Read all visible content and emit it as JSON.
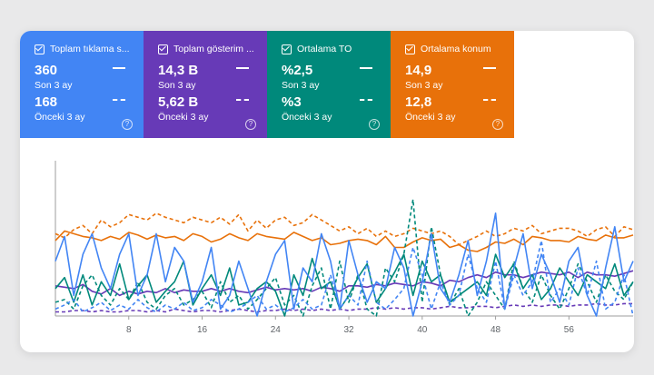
{
  "metrics": [
    {
      "label": "Toplam tıklama s...",
      "current_value": "360",
      "current_period": "Son 3 ay",
      "previous_value": "168",
      "previous_period": "Önceki 3 ay",
      "color": "#4285f4"
    },
    {
      "label": "Toplam gösterim ...",
      "current_value": "14,3 B",
      "current_period": "Son 3 ay",
      "previous_value": "5,62 B",
      "previous_period": "Önceki 3 ay",
      "color": "#673ab7"
    },
    {
      "label": "Ortalama TO",
      "current_value": "%2,5",
      "current_period": "Son 3 ay",
      "previous_value": "%3",
      "previous_period": "Önceki 3 ay",
      "color": "#00897b"
    },
    {
      "label": "Ortalama konum",
      "current_value": "14,9",
      "current_period": "Son 3 ay",
      "previous_value": "12,8",
      "previous_period": "Önceki 3 ay",
      "color": "#e8710a"
    }
  ],
  "chart_data": {
    "type": "line",
    "x_ticks": [
      8,
      16,
      24,
      32,
      40,
      48,
      56
    ],
    "xlim": [
      0,
      63
    ],
    "ylim": [
      0,
      100
    ],
    "grid": false,
    "series": [
      {
        "metric": "Ortalama konum",
        "period": "current",
        "style": "solid",
        "color": "#e8710a",
        "values": [
          55,
          62,
          60,
          58,
          57,
          55,
          58,
          56,
          61,
          59,
          56,
          59,
          57,
          58,
          55,
          60,
          58,
          54,
          56,
          60,
          57,
          55,
          60,
          58,
          57,
          56,
          61,
          58,
          55,
          57,
          52,
          53,
          55,
          56,
          55,
          52,
          58,
          50,
          50,
          54,
          57,
          55,
          56,
          50,
          52,
          48,
          47,
          50,
          54,
          53,
          56,
          52,
          58,
          57,
          55,
          55,
          54,
          58,
          56,
          55,
          59,
          57,
          57,
          59
        ]
      },
      {
        "metric": "Ortalama konum",
        "period": "previous",
        "style": "dashed",
        "color": "#e8710a",
        "values": [
          60,
          57,
          63,
          66,
          60,
          70,
          65,
          68,
          74,
          72,
          70,
          75,
          72,
          70,
          68,
          72,
          70,
          68,
          72,
          67,
          74,
          62,
          70,
          64,
          70,
          72,
          66,
          68,
          74,
          70,
          66,
          62,
          65,
          60,
          64,
          58,
          62,
          58,
          60,
          64,
          62,
          60,
          62,
          58,
          52,
          55,
          58,
          62,
          58,
          60,
          64,
          62,
          66,
          60,
          62,
          64,
          64,
          62,
          58,
          63,
          65,
          58,
          65,
          63
        ]
      },
      {
        "metric": "Toplam gösterim",
        "period": "current",
        "style": "solid",
        "color": "#673ab7",
        "values": [
          22,
          21,
          20,
          23,
          18,
          16,
          20,
          15,
          18,
          16,
          18,
          17,
          20,
          17,
          19,
          18,
          18,
          20,
          18,
          20,
          18,
          17,
          19,
          21,
          19,
          20,
          19,
          20,
          18,
          21,
          20,
          18,
          22,
          22,
          21,
          23,
          22,
          24,
          23,
          22,
          25,
          24,
          22,
          26,
          25,
          28,
          30,
          28,
          32,
          30,
          30,
          28,
          30,
          32,
          31,
          30,
          32,
          28,
          32,
          30,
          30,
          29,
          31,
          33
        ]
      },
      {
        "metric": "Toplam gösterim",
        "period": "previous",
        "style": "dashed",
        "color": "#673ab7",
        "values": [
          3,
          3,
          4,
          4,
          3,
          4,
          3,
          3,
          4,
          4,
          3,
          4,
          3,
          5,
          4,
          3,
          4,
          4,
          3,
          4,
          5,
          4,
          3,
          4,
          4,
          5,
          4,
          5,
          4,
          5,
          4,
          5,
          4,
          5,
          5,
          6,
          5,
          6,
          5,
          6,
          6,
          5,
          6,
          7,
          6,
          6,
          7,
          7,
          6,
          7,
          8,
          7,
          8,
          7,
          8,
          8,
          7,
          8,
          8,
          9,
          8,
          8,
          9,
          9
        ]
      },
      {
        "metric": "Ortalama TO",
        "period": "current",
        "style": "solid",
        "color": "#00897b",
        "values": [
          20,
          28,
          10,
          30,
          8,
          25,
          15,
          38,
          12,
          22,
          30,
          10,
          18,
          25,
          40,
          8,
          20,
          30,
          15,
          35,
          8,
          10,
          20,
          25,
          18,
          0,
          30,
          15,
          42,
          20,
          25,
          5,
          15,
          28,
          38,
          10,
          20,
          32,
          45,
          15,
          40,
          25,
          30,
          10,
          15,
          20,
          25,
          15,
          45,
          28,
          38,
          20,
          30,
          12,
          20,
          35,
          25,
          15,
          30,
          25,
          20,
          38,
          15,
          25
        ]
      },
      {
        "metric": "Ortalama TO",
        "period": "previous",
        "style": "dashed",
        "color": "#00897b",
        "values": [
          10,
          12,
          5,
          22,
          30,
          15,
          8,
          20,
          12,
          25,
          10,
          5,
          15,
          20,
          8,
          12,
          18,
          6,
          25,
          10,
          15,
          5,
          12,
          20,
          28,
          8,
          15,
          0,
          22,
          35,
          5,
          40,
          10,
          30,
          5,
          0,
          35,
          25,
          45,
          85,
          10,
          65,
          30,
          8,
          20,
          0,
          10,
          25,
          15,
          5,
          40,
          20,
          10,
          30,
          15,
          5,
          20,
          38,
          25,
          10,
          30,
          18,
          12,
          25
        ]
      },
      {
        "metric": "Toplam tıklama",
        "period": "current",
        "style": "solid",
        "color": "#4285f4",
        "values": [
          40,
          58,
          15,
          45,
          60,
          35,
          20,
          45,
          60,
          15,
          30,
          60,
          25,
          50,
          40,
          10,
          25,
          50,
          5,
          15,
          40,
          20,
          0,
          25,
          45,
          55,
          5,
          35,
          25,
          60,
          40,
          5,
          55,
          30,
          10,
          25,
          20,
          50,
          35,
          0,
          25,
          60,
          20,
          10,
          30,
          55,
          15,
          40,
          75,
          5,
          35,
          60,
          20,
          45,
          30,
          10,
          40,
          50,
          15,
          0,
          35,
          65,
          25,
          40
        ]
      },
      {
        "metric": "Toplam tıklama",
        "period": "previous",
        "style": "dashed",
        "color": "#4285f4",
        "values": [
          5,
          8,
          12,
          3,
          6,
          10,
          4,
          8,
          5,
          12,
          6,
          3,
          8,
          5,
          10,
          4,
          6,
          12,
          8,
          3,
          5,
          10,
          15,
          5,
          8,
          3,
          6,
          12,
          5,
          8,
          30,
          5,
          15,
          8,
          40,
          10,
          5,
          12,
          20,
          50,
          30,
          5,
          25,
          8,
          15,
          45,
          20,
          10,
          40,
          5,
          30,
          15,
          25,
          55,
          10,
          20,
          8,
          35,
          15,
          40,
          5,
          10,
          30,
          0
        ]
      }
    ]
  }
}
